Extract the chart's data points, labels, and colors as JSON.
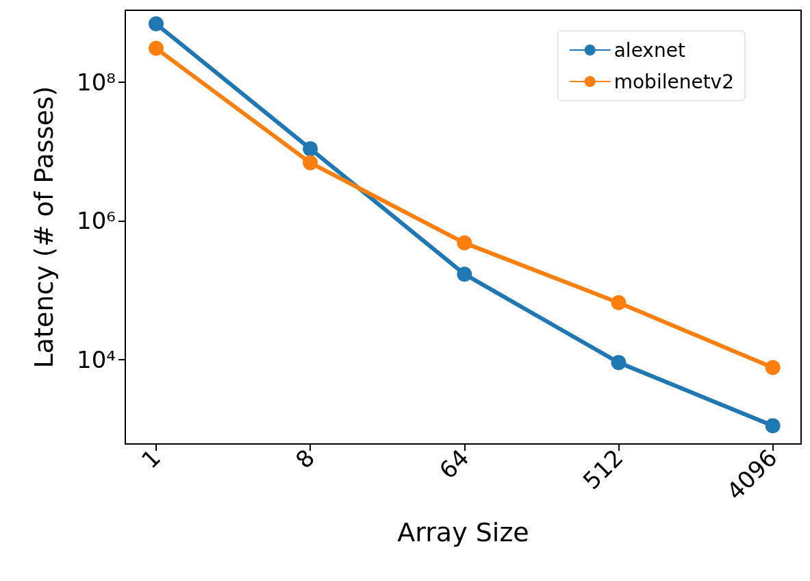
{
  "chart_data": {
    "type": "line",
    "xlabel": "Array Size",
    "ylabel": "Latency (# of Passes)",
    "x": [
      1,
      8,
      64,
      512,
      4096
    ],
    "series": [
      {
        "name": "alexnet",
        "color": "#1f77b4",
        "values": [
          700000000,
          11000000,
          170000,
          9000,
          1100
        ]
      },
      {
        "name": "mobilenetv2",
        "color": "#ff7f0e",
        "values": [
          310000000,
          6900000,
          480000,
          66000,
          7600
        ]
      }
    ],
    "log": "xy",
    "xlim": [
      0.66,
      6000
    ],
    "ylim": [
      600,
      1100000000
    ],
    "xticks": [
      1,
      8,
      64,
      512,
      4096
    ],
    "yticks": [
      {
        "value": 10000,
        "label": "10⁴"
      },
      {
        "value": 1000000,
        "label": "10⁶"
      },
      {
        "value": 100000000,
        "label": "10⁸"
      }
    ],
    "legend": "top right",
    "marker": "circle",
    "line_style": "solid",
    "grid": false
  }
}
